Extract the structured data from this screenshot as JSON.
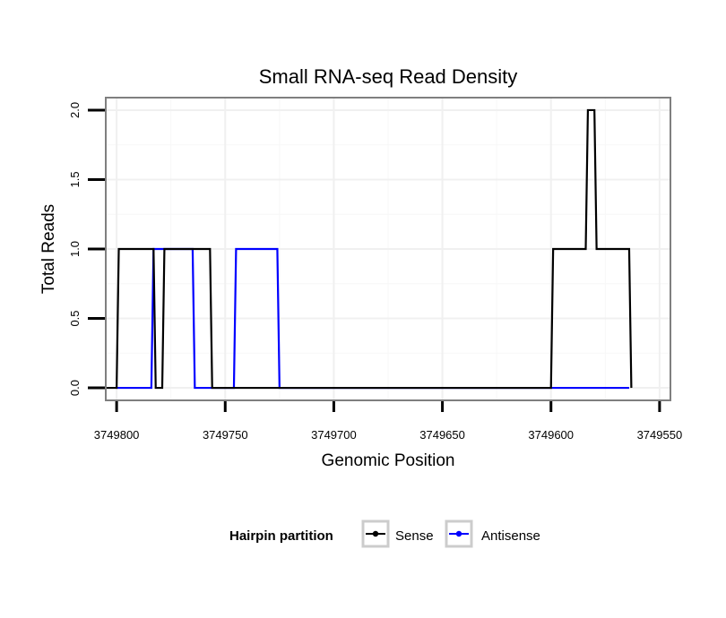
{
  "chart_data": {
    "type": "line",
    "title": "Small RNA-seq Read Density",
    "xlabel": "Genomic Position",
    "ylabel": "Total Reads",
    "xlim": [
      3749805,
      3749545
    ],
    "ylim": [
      -0.09,
      2.09
    ],
    "x_reversed": true,
    "xticks": [
      3749800,
      3749750,
      3749700,
      3749650,
      3749600,
      3749550
    ],
    "xtick_labels": [
      "3749800",
      "3749750",
      "3749700",
      "3749650",
      "3749600",
      "3749550"
    ],
    "yticks": [
      0,
      0.5,
      1,
      1.5,
      2
    ],
    "ytick_labels": [
      "0.0",
      "0.5",
      "1.0",
      "1.5",
      "2.0"
    ],
    "grid": true,
    "legend": {
      "title": "Hairpin partition",
      "position": "bottom"
    },
    "series": [
      {
        "name": "Sense",
        "color": "#000000",
        "x": [
          3749805,
          3749800,
          3749799,
          3749783,
          3749782,
          3749781,
          3749780,
          3749779,
          3749778,
          3749757,
          3749756,
          3749600,
          3749599,
          3749584,
          3749583,
          3749581,
          3749580,
          3749579,
          3749578,
          3749564,
          3749563
        ],
        "y": [
          0,
          0,
          1,
          1,
          0,
          0,
          0,
          0,
          1,
          1,
          0,
          0,
          1,
          1,
          2,
          2,
          2,
          1,
          1,
          1,
          0
        ]
      },
      {
        "name": "Antisense",
        "color": "#0000ff",
        "x": [
          3749800,
          3749784,
          3749783,
          3749765,
          3749764,
          3749746,
          3749745,
          3749726,
          3749725,
          3749564
        ],
        "y": [
          0,
          0,
          1,
          1,
          0,
          0,
          1,
          1,
          0,
          0
        ]
      }
    ]
  }
}
